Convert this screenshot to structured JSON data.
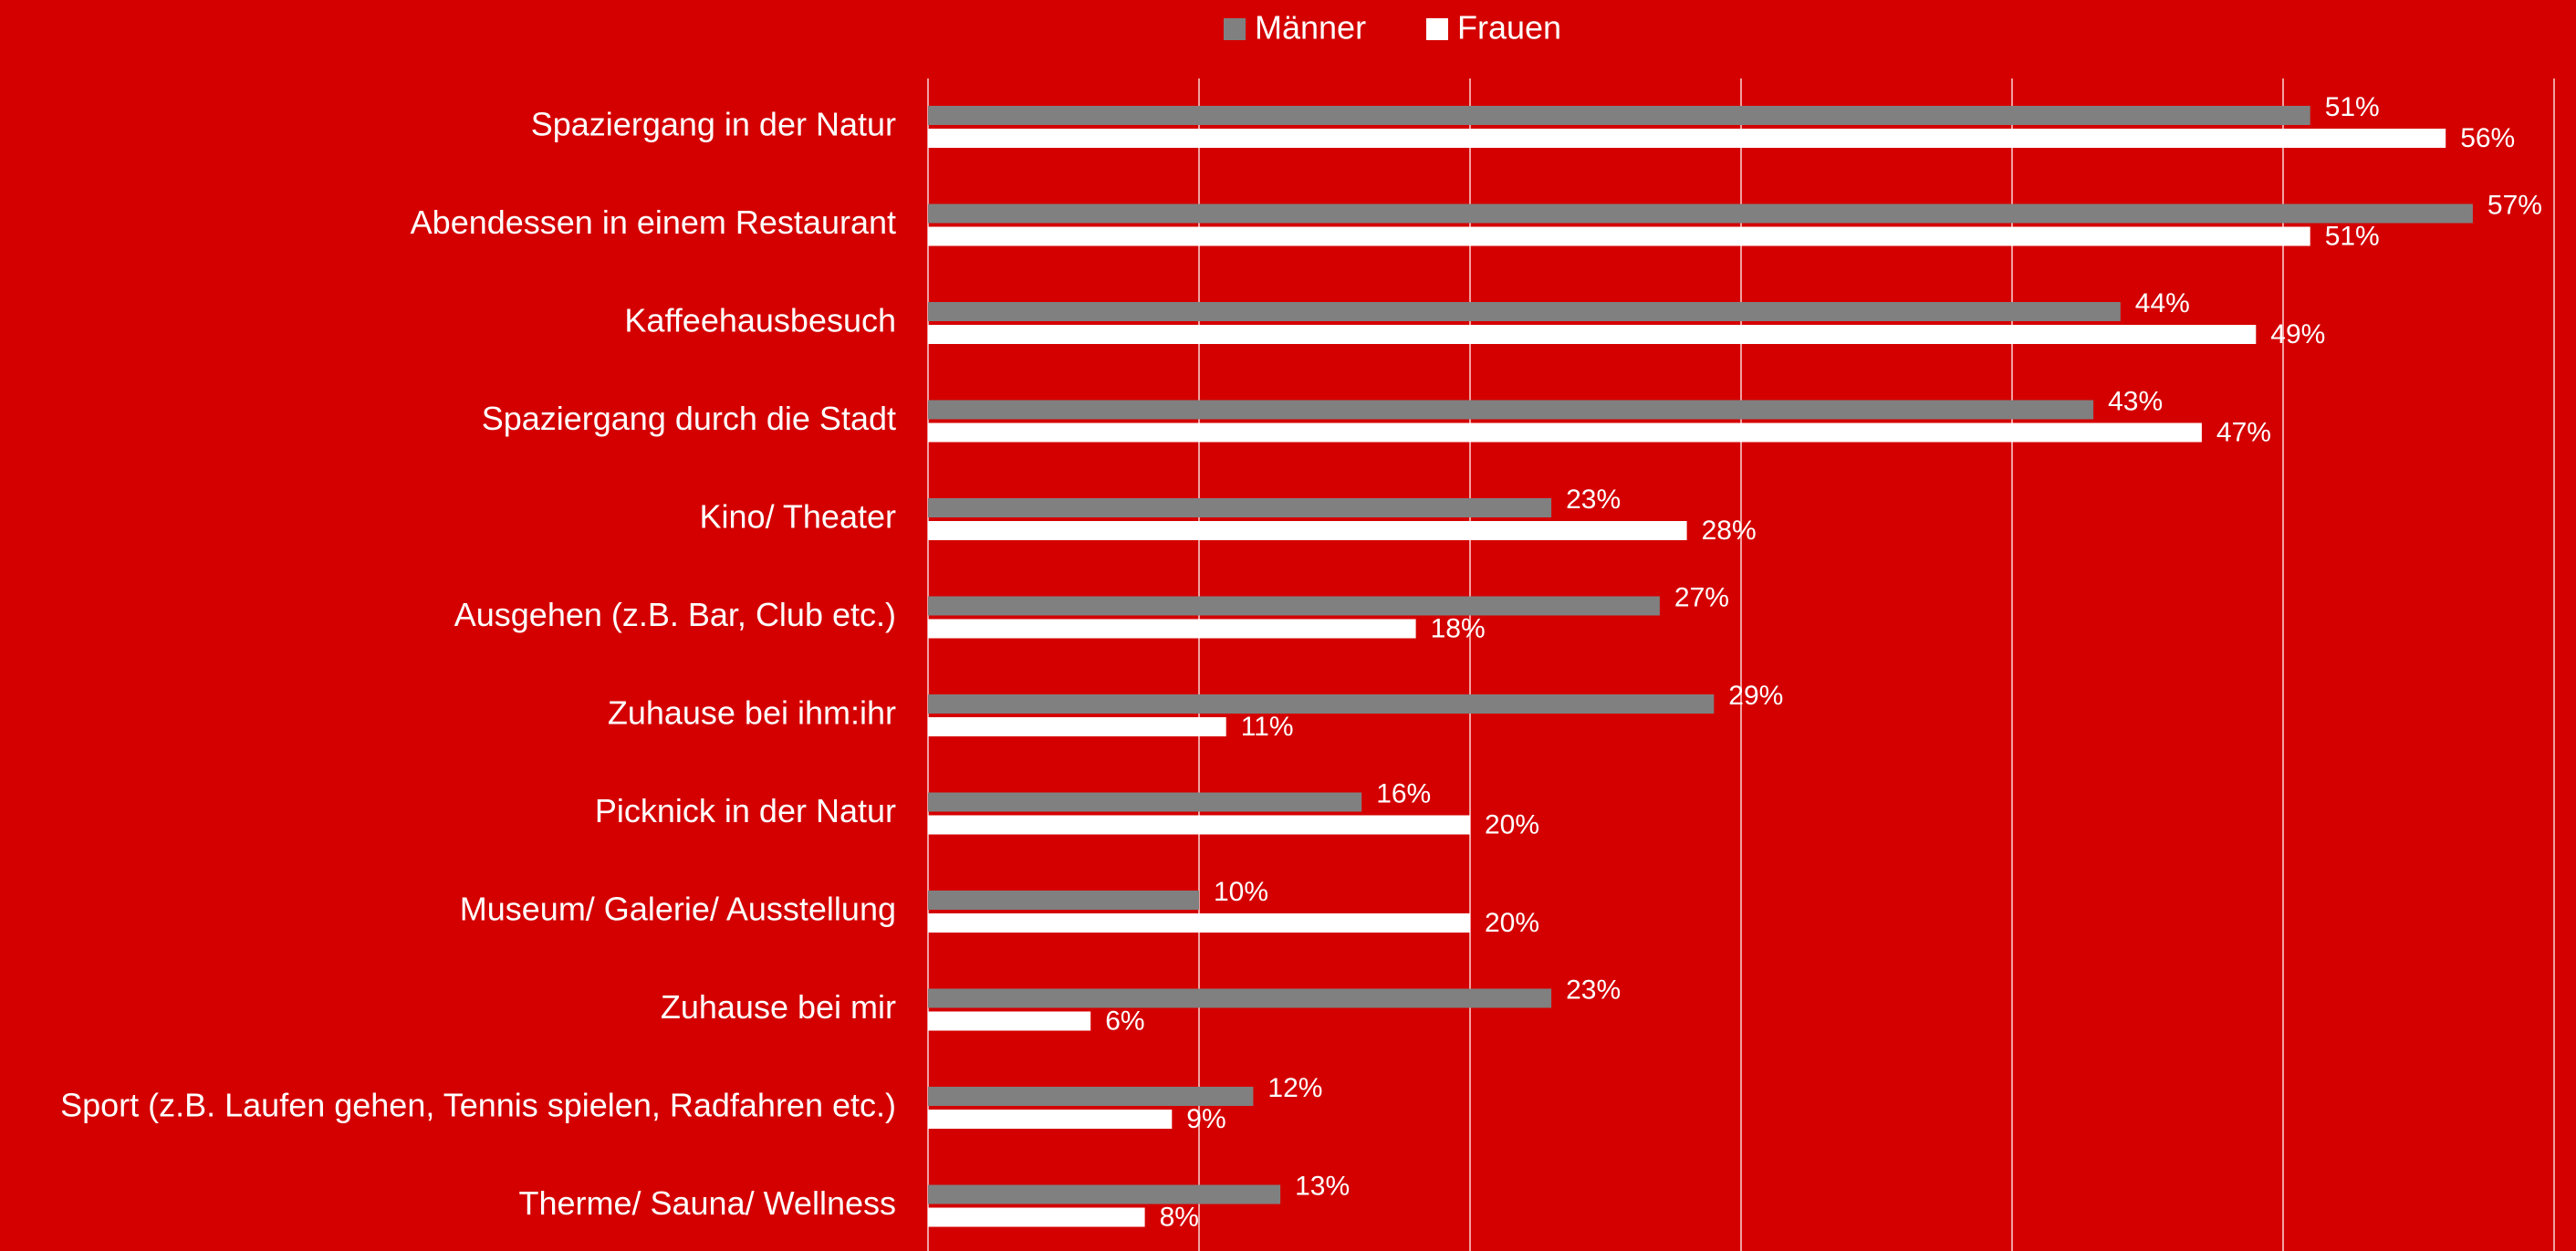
{
  "chart_data": {
    "type": "bar",
    "orientation": "horizontal",
    "categories": [
      "Spaziergang in der Natur",
      "Abendessen in einem Restaurant",
      "Kaffeehausbesuch",
      "Spaziergang durch die Stadt",
      "Kino/ Theater",
      "Ausgehen (z.B. Bar, Club etc.)",
      "Zuhause bei ihm:ihr",
      "Picknick in der Natur",
      "Museum/ Galerie/ Ausstellung",
      "Zuhause bei mir",
      "Sport (z.B. Laufen gehen, Tennis spielen, Radfahren etc.)",
      "Therme/ Sauna/ Wellness"
    ],
    "series": [
      {
        "name": "Männer",
        "color": "#808080",
        "values": [
          51,
          57,
          44,
          43,
          23,
          27,
          29,
          16,
          10,
          23,
          12,
          13
        ],
        "value_labels": [
          "51%",
          "57%",
          "44%",
          "43%",
          "23%",
          "27%",
          "29%",
          "16%",
          "10%",
          "23%",
          "12%",
          "13%"
        ]
      },
      {
        "name": "Frauen",
        "color": "#ffffff",
        "values": [
          56,
          51,
          49,
          47,
          28,
          18,
          11,
          20,
          20,
          6,
          9,
          8
        ],
        "value_labels": [
          "56%",
          "51%",
          "49%",
          "47%",
          "28%",
          "18%",
          "11%",
          "20%",
          "20%",
          "6%",
          "9%",
          "8%"
        ]
      }
    ],
    "xlim": [
      0,
      60
    ],
    "xticks": [
      0,
      10,
      20,
      30,
      40,
      50,
      60
    ],
    "grid": true,
    "legend": "top"
  }
}
